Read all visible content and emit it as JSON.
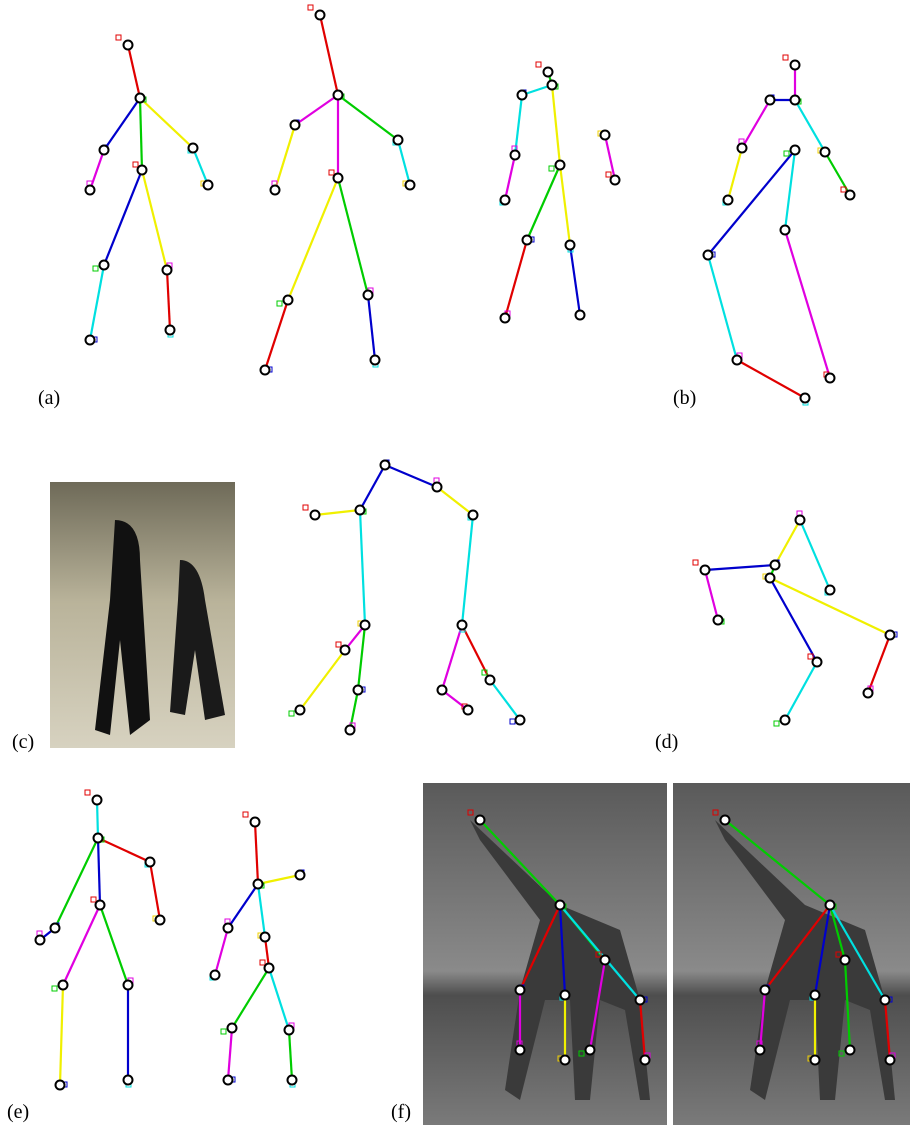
{
  "panels": {
    "a": "(a)",
    "b": "(b)",
    "c": "(c)",
    "d": "(d)",
    "e": "(e)",
    "f": "(f)"
  }
}
